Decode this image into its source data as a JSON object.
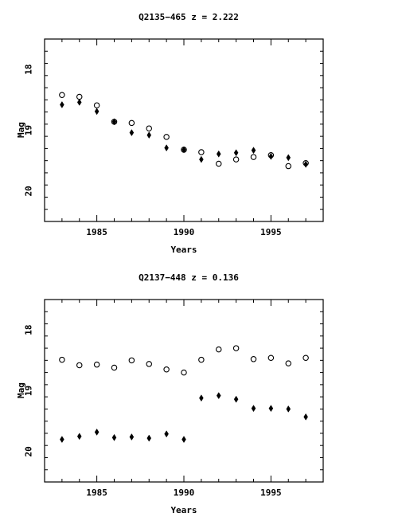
{
  "chart_data": [
    {
      "type": "scatter",
      "title": "Q2135−465  z = 2.222",
      "xlabel": "Years",
      "ylabel": "Mag",
      "xlim": [
        1982.0,
        1998.0
      ],
      "ylim": [
        20.5,
        17.5
      ],
      "y_inverted": true,
      "x_ticks": [
        1985,
        1990,
        1995
      ],
      "x_tick_labels": [
        "1985",
        "1990",
        "1995"
      ],
      "y_ticks": [
        18,
        19,
        20
      ],
      "y_tick_labels": [
        "18",
        "19",
        "20"
      ],
      "x_minor_step": 1,
      "y_minor_step": 0.2,
      "grid": false,
      "series": [
        {
          "marker": "circle",
          "color": "#000000",
          "x": [
            1983,
            1984,
            1985,
            1986,
            1987,
            1988,
            1989,
            1990,
            1991,
            1992,
            1993,
            1994,
            1995,
            1996,
            1997
          ],
          "y": [
            18.42,
            18.45,
            18.59,
            18.86,
            18.88,
            18.97,
            19.11,
            19.32,
            19.36,
            19.55,
            19.48,
            19.44,
            19.41,
            19.59,
            19.54
          ]
        },
        {
          "marker": "diamond",
          "color": "#000000",
          "x": [
            1983,
            1984,
            1985,
            1986,
            1987,
            1988,
            1989,
            1990,
            1991,
            1992,
            1993,
            1994,
            1995,
            1996,
            1997
          ],
          "y": [
            18.58,
            18.54,
            18.69,
            18.86,
            19.04,
            19.08,
            19.29,
            19.32,
            19.48,
            19.39,
            19.37,
            19.33,
            19.43,
            19.45,
            19.56
          ]
        }
      ]
    },
    {
      "type": "scatter",
      "title": "Q2137−448  z = 0.136",
      "xlabel": "Years",
      "ylabel": "Mag",
      "xlim": [
        1982.0,
        1998.0
      ],
      "ylim": [
        20.5,
        17.5
      ],
      "y_inverted": true,
      "x_ticks": [
        1985,
        1990,
        1995
      ],
      "x_tick_labels": [
        "1985",
        "1990",
        "1995"
      ],
      "y_ticks": [
        18,
        19,
        20
      ],
      "y_tick_labels": [
        "18",
        "19",
        "20"
      ],
      "x_minor_step": 1,
      "y_minor_step": 0.2,
      "grid": false,
      "series": [
        {
          "marker": "circle",
          "color": "#000000",
          "x": [
            1983,
            1984,
            1985,
            1986,
            1987,
            1988,
            1989,
            1990,
            1991,
            1992,
            1993,
            1994,
            1995,
            1996,
            1997
          ],
          "y": [
            18.49,
            18.58,
            18.57,
            18.62,
            18.5,
            18.56,
            18.65,
            18.7,
            18.49,
            18.32,
            18.3,
            18.48,
            18.46,
            18.55,
            18.46
          ]
        },
        {
          "marker": "diamond",
          "color": "#000000",
          "x": [
            1983,
            1984,
            1985,
            1986,
            1987,
            1988,
            1989,
            1990,
            1991,
            1992,
            1993,
            1994,
            1995,
            1996,
            1997
          ],
          "y": [
            19.8,
            19.75,
            19.68,
            19.77,
            19.76,
            19.78,
            19.71,
            19.8,
            19.12,
            19.08,
            19.14,
            19.29,
            19.29,
            19.3,
            19.43
          ]
        }
      ]
    }
  ]
}
